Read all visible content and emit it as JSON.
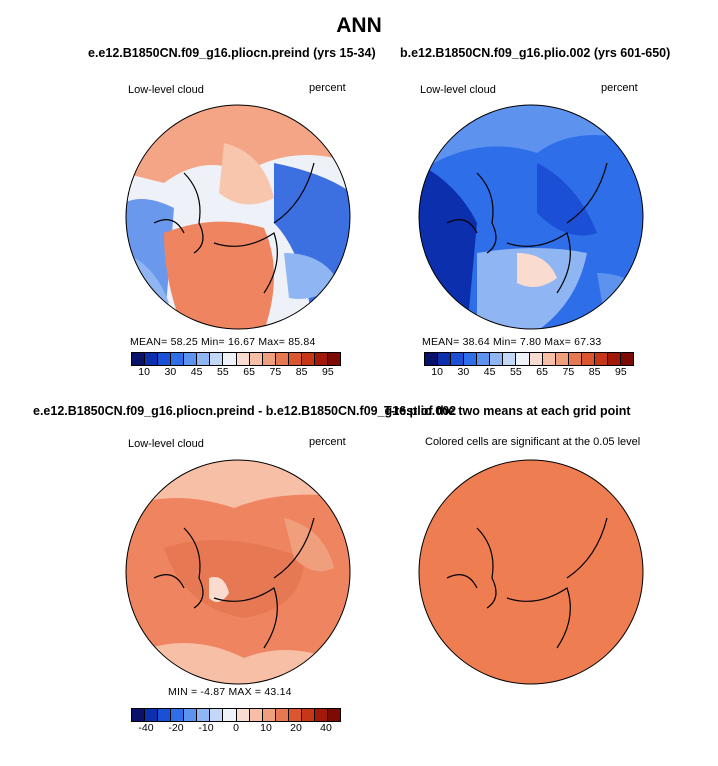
{
  "title": "ANN",
  "panels": {
    "top_left": {
      "title": "e.e12.B1850CN.f09_g16.pliocn.preind (yrs 15-34)",
      "variable": "Low-level cloud",
      "units": "percent",
      "stats": "MEAN=  58.25   Min=  16.67   Max=  85.84",
      "fill": "mixed-warm"
    },
    "top_right": {
      "title": "b.e12.B1850CN.f09_g16.plio.002 (yrs 601-650)",
      "variable": "Low-level cloud",
      "units": "percent",
      "stats": "MEAN=  38.64   Min=   7.80   Max=  67.33",
      "fill": "mostly-blue"
    },
    "bottom_left": {
      "title": "e.e12.B1850CN.f09_g16.pliocn.preind - b.e12.B1850CN.f09_g16.plio.002",
      "variable": "Low-level cloud",
      "units": "percent",
      "stats": "MIN =  -4.87  MAX =  43.14",
      "fill": "orange-red"
    },
    "bottom_right": {
      "title": "T-test of the two means at each grid point",
      "subtitle": "Colored cells are significant at the 0.05 level",
      "fill": "solid-orange"
    }
  },
  "colorbar_abs": {
    "colors": [
      "#08126b",
      "#0c2fae",
      "#1a4fd6",
      "#2e6ee8",
      "#5d92ef",
      "#8fb5f3",
      "#c3d8f7",
      "#eef1f7",
      "#f9dccf",
      "#f6bfa6",
      "#f09f7c",
      "#e77854",
      "#da5530",
      "#c83618",
      "#a21909",
      "#7d0a03"
    ],
    "labels": [
      "10",
      "30",
      "45",
      "55",
      "65",
      "75",
      "85",
      "95"
    ]
  },
  "colorbar_diff": {
    "colors": [
      "#08126b",
      "#0c2fae",
      "#1a4fd6",
      "#2e6ee8",
      "#5d92ef",
      "#8fb5f3",
      "#c3d8f7",
      "#eef1f7",
      "#f9dccf",
      "#f6bfa6",
      "#f09f7c",
      "#e77854",
      "#da5530",
      "#c83618",
      "#a21909",
      "#7d0a03"
    ],
    "labels": [
      "-40",
      "-20",
      "-10",
      "0",
      "10",
      "20",
      "40"
    ]
  }
}
